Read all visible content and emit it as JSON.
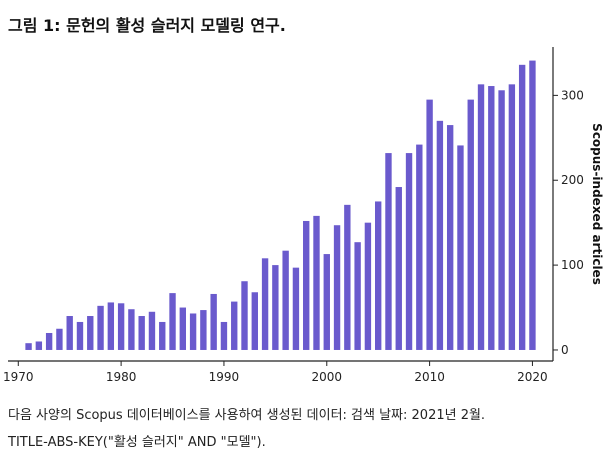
{
  "figure": {
    "title": "그림 1: 문헌의 활성 슬러지 모델링 연구.",
    "caption_line1": "다음 사양의 Scopus 데이터베이스를 사용하여 생성된 데이터: 검색 날짜: 2021년 2월.",
    "caption_line2": "TITLE-ABS-KEY(\"활성 슬러지\" AND \"모델\")."
  },
  "colors": {
    "bar": "#6a5acd",
    "axis": "#222222"
  },
  "chart_data": {
    "type": "bar",
    "title": "",
    "xlabel": "",
    "ylabel": "Scopus-indexed articles",
    "categories": [
      1971,
      1972,
      1973,
      1974,
      1975,
      1976,
      1977,
      1978,
      1979,
      1980,
      1981,
      1982,
      1983,
      1984,
      1985,
      1986,
      1987,
      1988,
      1989,
      1990,
      1991,
      1992,
      1993,
      1994,
      1995,
      1996,
      1997,
      1998,
      1999,
      2000,
      2001,
      2002,
      2003,
      2004,
      2005,
      2006,
      2007,
      2008,
      2009,
      2010,
      2011,
      2012,
      2013,
      2014,
      2015,
      2016,
      2017,
      2018,
      2019,
      2020
    ],
    "values": [
      8,
      10,
      20,
      25,
      40,
      33,
      40,
      52,
      56,
      55,
      48,
      40,
      45,
      33,
      67,
      50,
      43,
      47,
      66,
      33,
      57,
      81,
      68,
      108,
      100,
      117,
      97,
      152,
      158,
      113,
      147,
      171,
      127,
      150,
      175,
      232,
      192,
      232,
      242,
      295,
      270,
      265,
      241,
      295,
      313,
      311,
      306,
      313,
      336,
      341
    ],
    "x_ticks": [
      "1970",
      "1980",
      "1990",
      "2000",
      "2010",
      "2020"
    ],
    "x_tick_values": [
      1970,
      1980,
      1990,
      2000,
      2010,
      2020
    ],
    "y_ticks": [
      "0",
      "100",
      "200",
      "300"
    ],
    "y_tick_values": [
      0,
      100,
      200,
      300
    ],
    "xlim": [
      1969,
      2022
    ],
    "ylim": [
      -13,
      357
    ],
    "legend": "none",
    "grid": false
  }
}
